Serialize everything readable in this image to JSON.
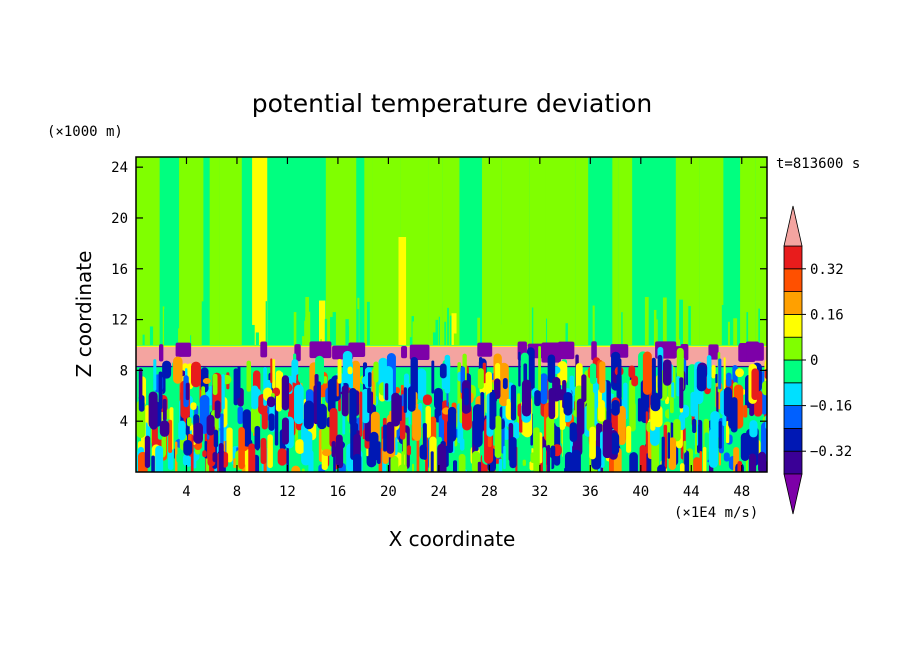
{
  "chart_data": {
    "type": "heatmap",
    "title": "potential temperature deviation",
    "xlabel": "X coordinate",
    "ylabel": "Z coordinate",
    "x_unit": "(×1E4 m/s)",
    "y_unit": "(×1000 m)",
    "time_label": "t=813600 s",
    "xlim": [
      0,
      50
    ],
    "ylim": [
      0,
      24.8
    ],
    "x_ticks": [
      4,
      8,
      12,
      16,
      20,
      24,
      28,
      32,
      36,
      40,
      44,
      48
    ],
    "y_ticks": [
      4,
      8,
      12,
      16,
      20,
      24
    ],
    "colorbar": {
      "levels": [
        -0.4,
        -0.32,
        -0.24,
        -0.16,
        -0.08,
        0,
        0.08,
        0.16,
        0.24,
        0.32,
        0.4
      ],
      "tick_labels": [
        "0.32",
        "0.16",
        "0",
        "−0.16",
        "−0.32"
      ],
      "tick_values": [
        0.32,
        0.16,
        0,
        -0.16,
        -0.32
      ],
      "colors": [
        "#7d00a8",
        "#3a0096",
        "#0018b4",
        "#0060ff",
        "#00e0ff",
        "#00ff80",
        "#80ff00",
        "#ffff00",
        "#ffa000",
        "#ff5000",
        "#e81c1c",
        "#f4a4a0"
      ],
      "extend": "both"
    },
    "regions": [
      {
        "z_range": [
          10,
          24.8
        ],
        "value": 0.02,
        "description": "upper layer, mostly 0 to 0.08 with streaks of 0.08–0.16"
      },
      {
        "z_range": [
          8.4,
          9.9
        ],
        "value": 0.45,
        "description": "band above 0.4 with patches below −0.4"
      },
      {
        "z_range": [
          0,
          8.3
        ],
        "value": 0,
        "description": "turbulent layer spanning −0.4 to 0.4"
      }
    ]
  }
}
